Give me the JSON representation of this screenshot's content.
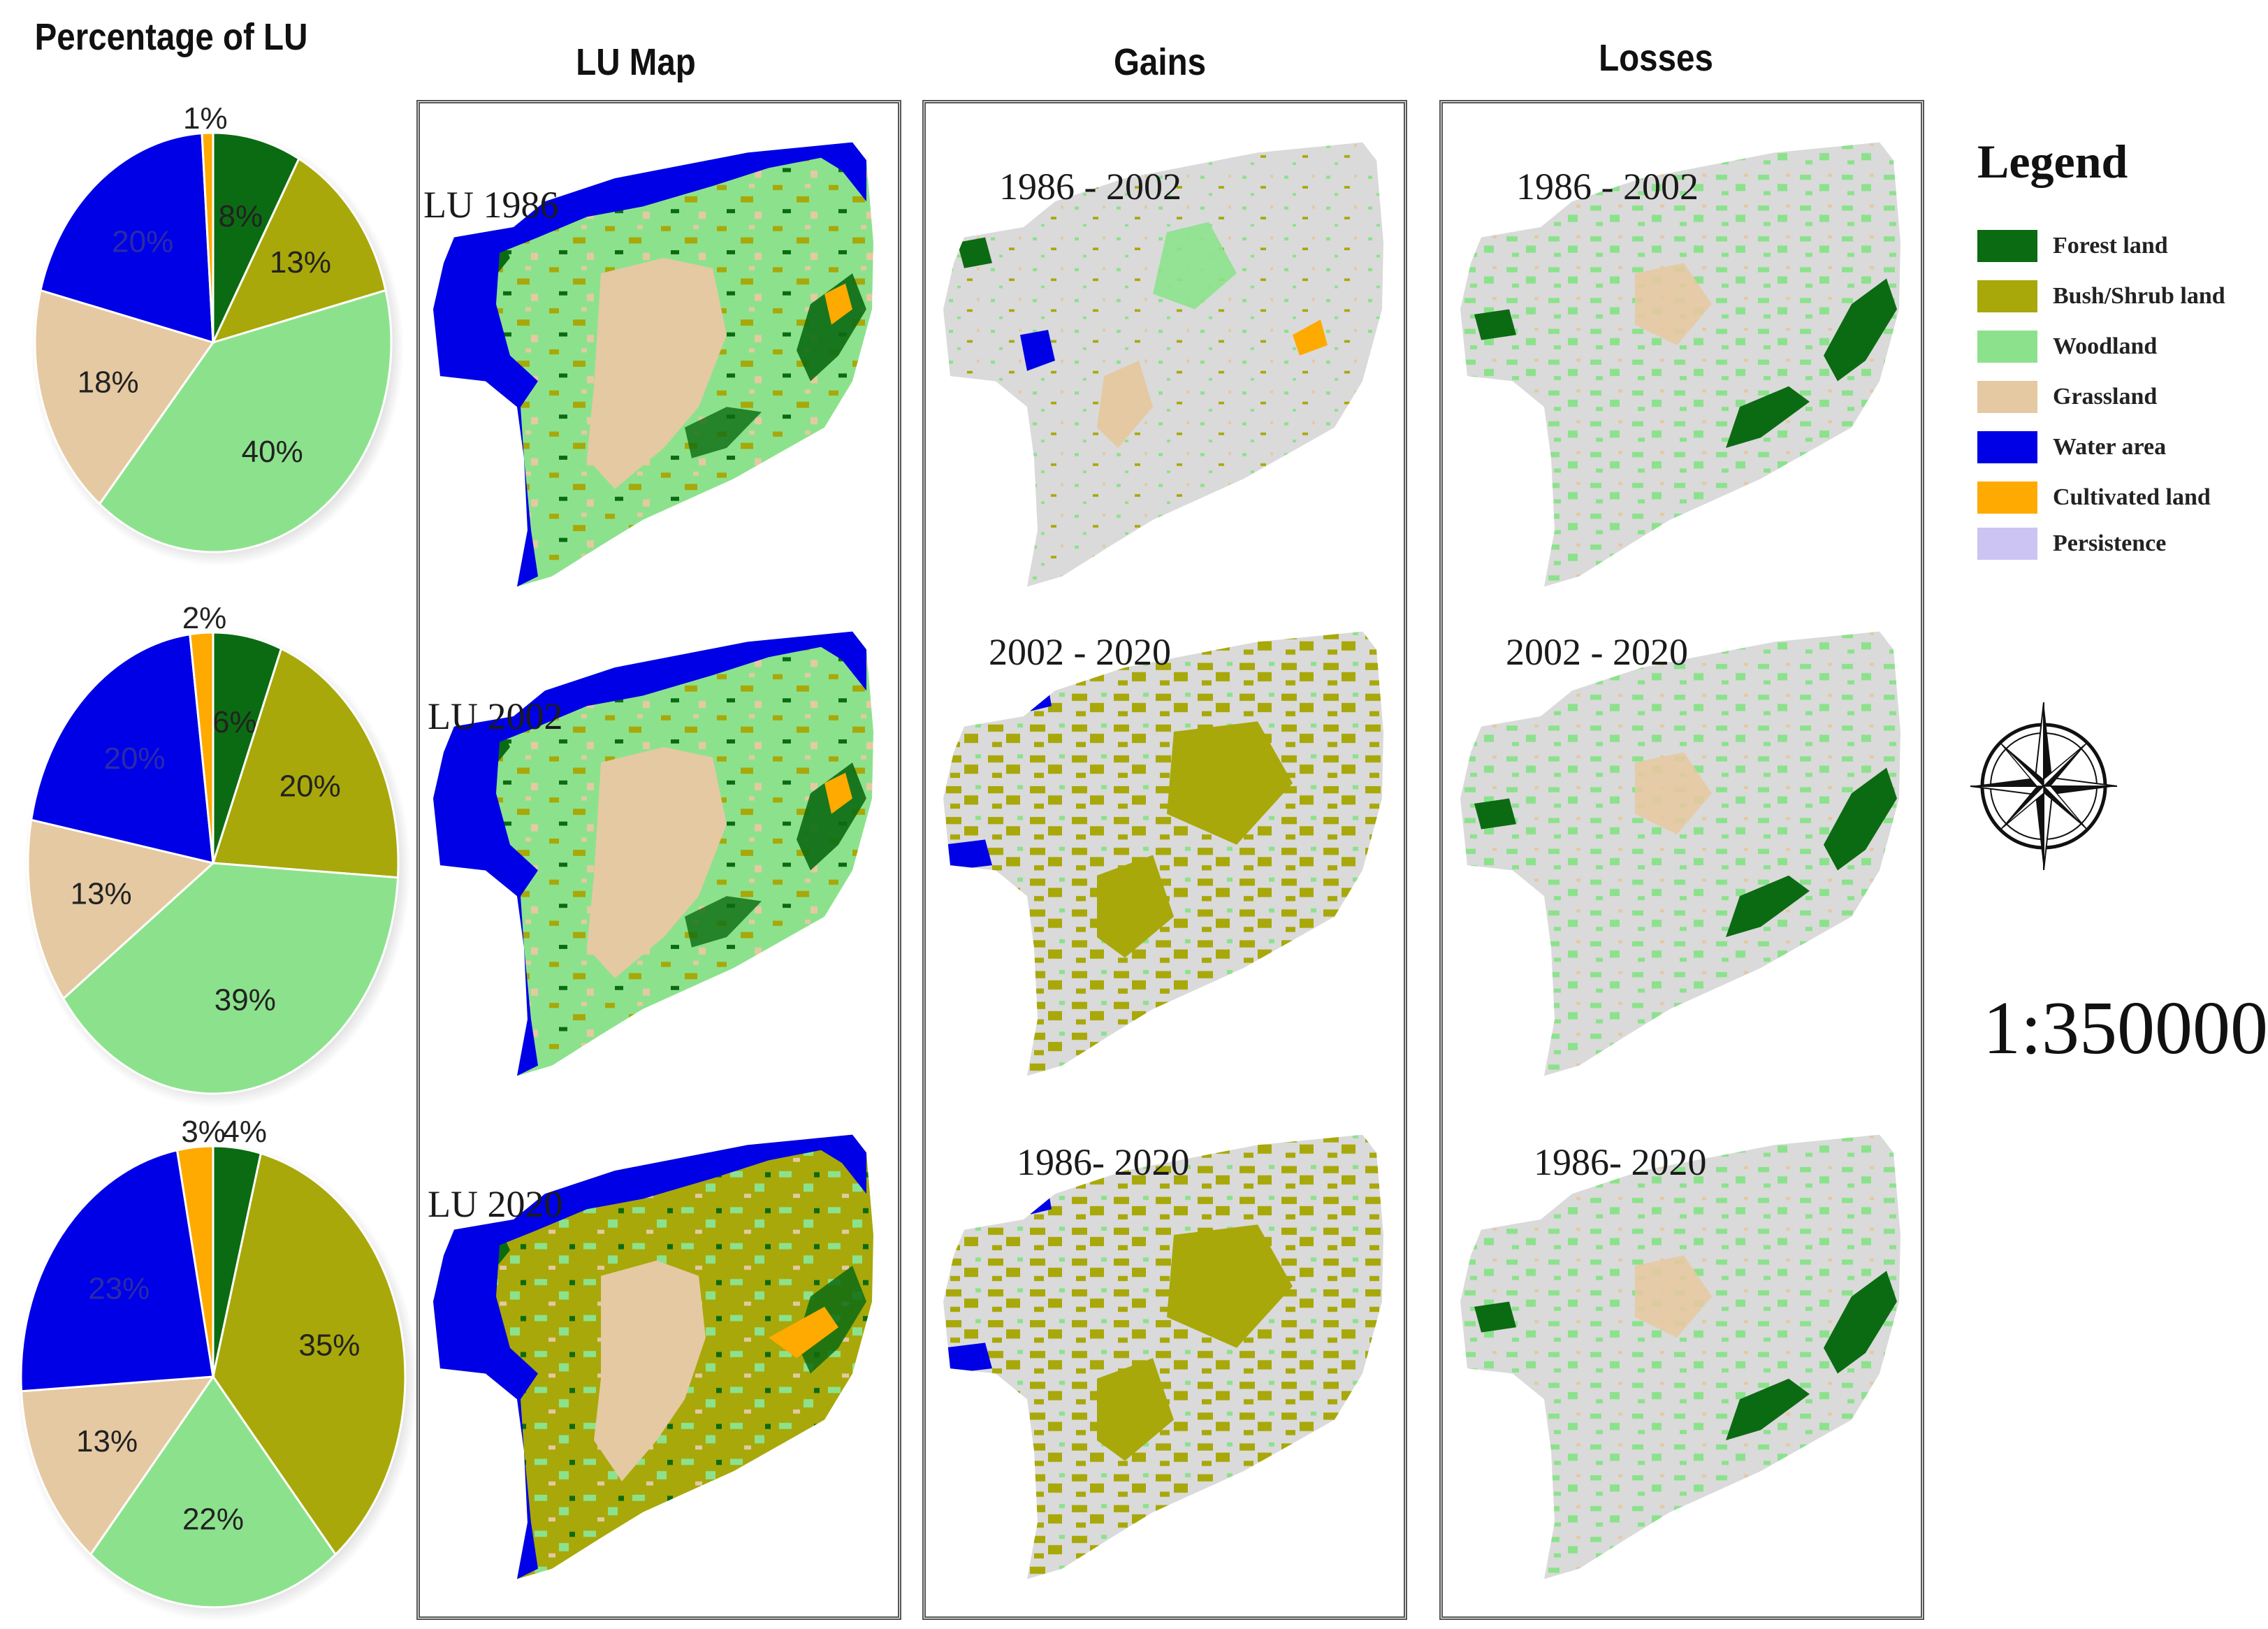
{
  "column_titles": {
    "pie": "Percentage of LU",
    "lu_map": "LU Map",
    "gains": "Gains",
    "losses": "Losses"
  },
  "lu_map_labels": [
    "LU 1986",
    "LU 2002",
    "LU 2020"
  ],
  "gains_labels": [
    "1986 - 2002",
    "2002 - 2020",
    "1986- 2020"
  ],
  "losses_labels": [
    "1986 - 2002",
    "2002 - 2020",
    "1986- 2020"
  ],
  "legend": {
    "title": "Legend",
    "items": [
      {
        "label": "Forest land",
        "color": "#0b6b12"
      },
      {
        "label": "Bush/Shrub land",
        "color": "#a8a80a"
      },
      {
        "label": "Woodland",
        "color": "#8ce28c"
      },
      {
        "label": "Grassland",
        "color": "#e5c9a2"
      },
      {
        "label": "Water area",
        "color": "#0000e6"
      },
      {
        "label": "Cultivated land",
        "color": "#ffaa00"
      },
      {
        "label": "Persistence",
        "color": "#ccc4f2"
      }
    ]
  },
  "scale": "1:350000",
  "icons": {
    "compass": "compass-rose-icon"
  },
  "chart_data": [
    {
      "type": "pie",
      "categories": [
        "Forest land",
        "Bush/Shrub land",
        "Woodland",
        "Grassland",
        "Water area",
        "Cultivated land"
      ],
      "values": [
        8,
        13,
        40,
        18,
        20,
        1
      ],
      "labels": [
        "8%",
        "13%",
        "40%",
        "18%",
        "20%",
        "1%"
      ]
    },
    {
      "type": "pie",
      "categories": [
        "Forest land",
        "Bush/Shrub land",
        "Woodland",
        "Grassland",
        "Water area",
        "Cultivated land"
      ],
      "values": [
        6,
        20,
        39,
        13,
        20,
        2
      ],
      "labels": [
        "6%",
        "20%",
        "39%",
        "13%",
        "20%",
        "2%"
      ]
    },
    {
      "type": "pie",
      "categories": [
        "Forest land",
        "Bush/Shrub land",
        "Woodland",
        "Grassland",
        "Water area",
        "Cultivated land"
      ],
      "values": [
        4,
        35,
        22,
        13,
        23,
        3
      ],
      "labels": [
        "4%",
        "35%",
        "22%",
        "13%",
        "23%",
        "3%"
      ]
    }
  ]
}
